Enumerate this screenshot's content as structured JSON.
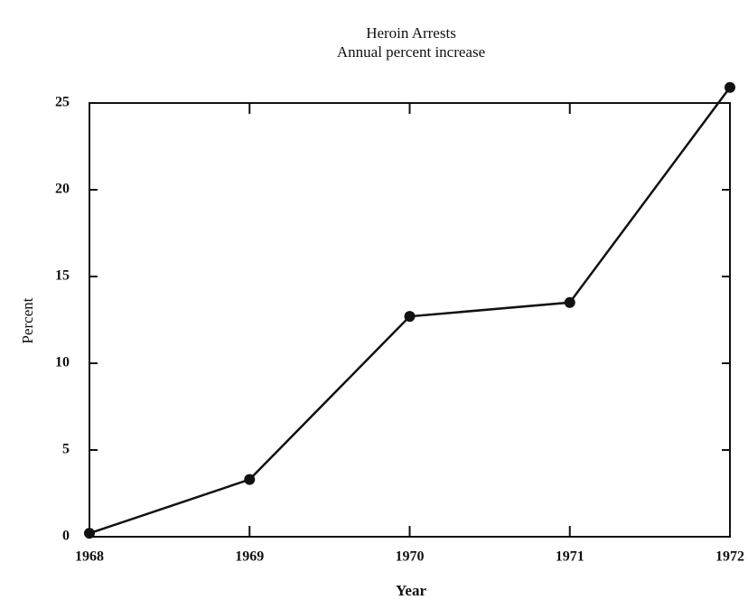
{
  "chart_data": {
    "type": "line",
    "title": "Heroin Arrests",
    "subtitle": "Annual percent increase",
    "x_label": "Year",
    "y_label": "Percent",
    "x": [
      1968,
      1969,
      1970,
      1971,
      1972
    ],
    "series": [
      {
        "name": "Heroin arrests",
        "color": "#111111",
        "values": [
          0.2,
          3.3,
          12.7,
          13.5,
          25.9
        ]
      }
    ],
    "xlim": [
      1968,
      1972
    ],
    "xticks": [
      1968,
      1969,
      1970,
      1971,
      1972
    ],
    "ylim": [
      0,
      25
    ],
    "yticks": [
      0,
      5,
      10,
      15,
      20,
      25
    ]
  }
}
